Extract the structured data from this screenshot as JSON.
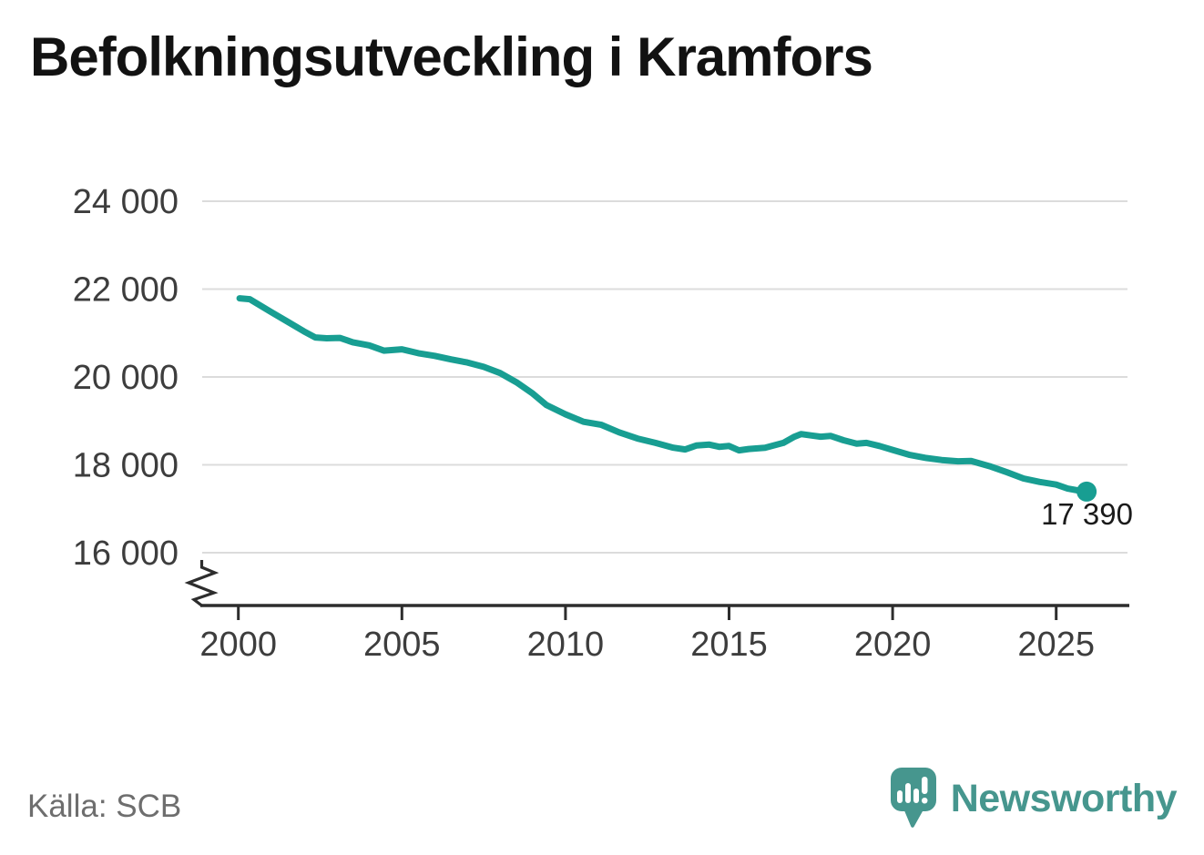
{
  "title": "Befolkningsutveckling i Kramfors",
  "source": "Källa: SCB",
  "branding": {
    "name": "Newsworthy"
  },
  "colors": {
    "line": "#189e92",
    "marker": "#189e92",
    "grid": "#dcdcdc",
    "axis": "#2d2d2d",
    "tick_label": "#3d3d3d",
    "title": "#121212",
    "source_text": "#6e6e6e",
    "value_label": "#1a1a1a",
    "logo": "#46968e"
  },
  "chart_data": {
    "type": "line",
    "title": "Befolkningsutveckling i Kramfors",
    "xlabel": "",
    "ylabel": "",
    "grid": "horizontal",
    "legend": "none",
    "axis_break": true,
    "xlim": [
      1998.85,
      2027.2
    ],
    "ylim": [
      16000,
      24000
    ],
    "x_ticks": [
      2000,
      2005,
      2010,
      2015,
      2020,
      2025
    ],
    "x_tick_labels": [
      "2000",
      "2005",
      "2010",
      "2015",
      "2020",
      "2025"
    ],
    "y_ticks": [
      16000,
      18000,
      20000,
      22000,
      24000
    ],
    "y_tick_labels": [
      "16 000",
      "18 000",
      "20 000",
      "22 000",
      "24 000"
    ],
    "end_label": "17 390",
    "end_value": 17390,
    "series": [
      {
        "points": [
          [
            2000.04,
            21790
          ],
          [
            2000.35,
            21770
          ],
          [
            2001.0,
            21480
          ],
          [
            2001.5,
            21260
          ],
          [
            2002.0,
            21040
          ],
          [
            2002.35,
            20900
          ],
          [
            2002.7,
            20880
          ],
          [
            2003.1,
            20890
          ],
          [
            2003.5,
            20790
          ],
          [
            2004.0,
            20720
          ],
          [
            2004.45,
            20600
          ],
          [
            2005.0,
            20630
          ],
          [
            2005.5,
            20540
          ],
          [
            2006.0,
            20480
          ],
          [
            2006.5,
            20400
          ],
          [
            2007.0,
            20330
          ],
          [
            2007.5,
            20230
          ],
          [
            2008.0,
            20090
          ],
          [
            2008.5,
            19880
          ],
          [
            2009.0,
            19620
          ],
          [
            2009.42,
            19360
          ],
          [
            2010.0,
            19150
          ],
          [
            2010.55,
            18980
          ],
          [
            2011.1,
            18910
          ],
          [
            2011.64,
            18740
          ],
          [
            2012.2,
            18600
          ],
          [
            2012.75,
            18500
          ],
          [
            2013.3,
            18390
          ],
          [
            2013.66,
            18350
          ],
          [
            2014.0,
            18440
          ],
          [
            2014.4,
            18460
          ],
          [
            2014.7,
            18410
          ],
          [
            2015.0,
            18430
          ],
          [
            2015.3,
            18330
          ],
          [
            2015.6,
            18360
          ],
          [
            2016.1,
            18390
          ],
          [
            2016.66,
            18500
          ],
          [
            2017.0,
            18640
          ],
          [
            2017.2,
            18700
          ],
          [
            2017.5,
            18670
          ],
          [
            2017.8,
            18640
          ],
          [
            2018.1,
            18660
          ],
          [
            2018.5,
            18560
          ],
          [
            2018.9,
            18480
          ],
          [
            2019.2,
            18500
          ],
          [
            2019.6,
            18430
          ],
          [
            2020.0,
            18340
          ],
          [
            2020.5,
            18230
          ],
          [
            2021.0,
            18160
          ],
          [
            2021.5,
            18110
          ],
          [
            2022.0,
            18080
          ],
          [
            2022.4,
            18090
          ],
          [
            2023.0,
            17960
          ],
          [
            2023.5,
            17830
          ],
          [
            2024.0,
            17690
          ],
          [
            2024.5,
            17610
          ],
          [
            2025.0,
            17550
          ],
          [
            2025.35,
            17460
          ],
          [
            2025.65,
            17420
          ],
          [
            2025.93,
            17390
          ]
        ]
      }
    ]
  }
}
